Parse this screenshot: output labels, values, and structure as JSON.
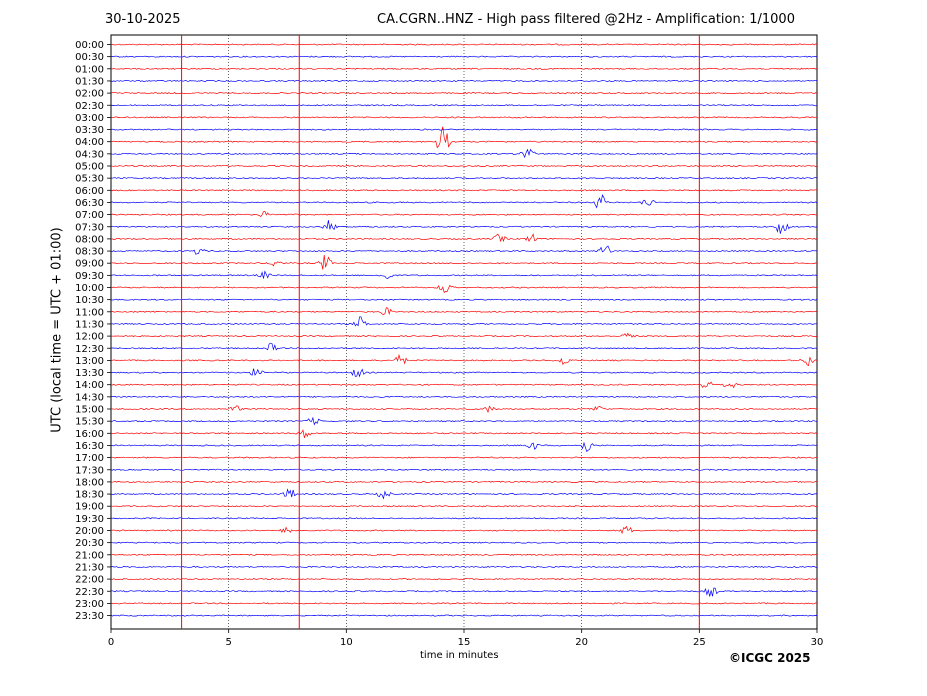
{
  "header": {
    "date": "30-10-2025",
    "title": "CA.CGRN..HNZ - High pass filtered @2Hz - Amplification: 1/1000"
  },
  "footer": {
    "credit": "©ICGC 2025"
  },
  "colors": {
    "trace_a": "#ff0000",
    "trace_b": "#0000ff",
    "axis": "#000000",
    "grid": "#000000"
  },
  "chart_data": {
    "type": "line",
    "title": "CA.CGRN..HNZ - High pass filtered @2Hz - Amplification: 1/1000",
    "xlabel": "time in minutes",
    "ylabel": "UTC (local time = UTC + 01:00)",
    "xlim": [
      0,
      30
    ],
    "x_ticks": [
      "0",
      "5",
      "10",
      "15",
      "20",
      "25",
      "30"
    ],
    "grid_x": "dotted vertical lines at 5, 10, 15, 20, 25",
    "y_order": "top to bottom, 00:00 first",
    "traces": [
      {
        "label": "00:00",
        "color": "red"
      },
      {
        "label": "00:30",
        "color": "blue"
      },
      {
        "label": "01:00",
        "color": "red"
      },
      {
        "label": "01:30",
        "color": "blue"
      },
      {
        "label": "02:00",
        "color": "red"
      },
      {
        "label": "02:30",
        "color": "blue"
      },
      {
        "label": "03:00",
        "color": "red"
      },
      {
        "label": "03:30",
        "color": "blue"
      },
      {
        "label": "04:00",
        "color": "red"
      },
      {
        "label": "04:30",
        "color": "blue"
      },
      {
        "label": "05:00",
        "color": "red"
      },
      {
        "label": "05:30",
        "color": "blue"
      },
      {
        "label": "06:00",
        "color": "red"
      },
      {
        "label": "06:30",
        "color": "blue"
      },
      {
        "label": "07:00",
        "color": "red"
      },
      {
        "label": "07:30",
        "color": "blue"
      },
      {
        "label": "08:00",
        "color": "red"
      },
      {
        "label": "08:30",
        "color": "blue"
      },
      {
        "label": "09:00",
        "color": "red"
      },
      {
        "label": "09:30",
        "color": "blue"
      },
      {
        "label": "10:00",
        "color": "red"
      },
      {
        "label": "10:30",
        "color": "blue"
      },
      {
        "label": "11:00",
        "color": "red"
      },
      {
        "label": "11:30",
        "color": "blue"
      },
      {
        "label": "12:00",
        "color": "red"
      },
      {
        "label": "12:30",
        "color": "blue"
      },
      {
        "label": "13:00",
        "color": "red"
      },
      {
        "label": "13:30",
        "color": "blue"
      },
      {
        "label": "14:00",
        "color": "red"
      },
      {
        "label": "14:30",
        "color": "blue"
      },
      {
        "label": "15:00",
        "color": "red"
      },
      {
        "label": "15:30",
        "color": "blue"
      },
      {
        "label": "16:00",
        "color": "red"
      },
      {
        "label": "16:30",
        "color": "blue"
      },
      {
        "label": "17:00",
        "color": "red"
      },
      {
        "label": "17:30",
        "color": "blue"
      },
      {
        "label": "18:00",
        "color": "red"
      },
      {
        "label": "18:30",
        "color": "blue"
      },
      {
        "label": "19:00",
        "color": "red"
      },
      {
        "label": "19:30",
        "color": "blue"
      },
      {
        "label": "20:00",
        "color": "red"
      },
      {
        "label": "20:30",
        "color": "blue"
      },
      {
        "label": "21:00",
        "color": "red"
      },
      {
        "label": "21:30",
        "color": "blue"
      },
      {
        "label": "22:00",
        "color": "red"
      },
      {
        "label": "22:30",
        "color": "blue"
      },
      {
        "label": "23:00",
        "color": "red"
      },
      {
        "label": "23:30",
        "color": "blue"
      }
    ],
    "vertical_events_minutes": [
      3,
      8,
      25
    ],
    "events": [
      {
        "trace": "04:00",
        "minute": 14.1,
        "amp": 3.5
      },
      {
        "trace": "04:30",
        "minute": 17.7,
        "amp": 2.0
      },
      {
        "trace": "06:30",
        "minute": 20.8,
        "amp": 1.8
      },
      {
        "trace": "06:30",
        "minute": 22.8,
        "amp": 1.0
      },
      {
        "trace": "07:00",
        "minute": 6.6,
        "amp": 1.0
      },
      {
        "trace": "07:30",
        "minute": 9.3,
        "amp": 1.5
      },
      {
        "trace": "07:30",
        "minute": 28.5,
        "amp": 2.0
      },
      {
        "trace": "08:00",
        "minute": 16.5,
        "amp": 1.0
      },
      {
        "trace": "08:00",
        "minute": 17.9,
        "amp": 1.0
      },
      {
        "trace": "08:30",
        "minute": 3.7,
        "amp": 0.8
      },
      {
        "trace": "08:30",
        "minute": 21.0,
        "amp": 1.5
      },
      {
        "trace": "09:00",
        "minute": 7.0,
        "amp": 0.8
      },
      {
        "trace": "09:00",
        "minute": 9.1,
        "amp": 1.8
      },
      {
        "trace": "09:30",
        "minute": 6.5,
        "amp": 0.8
      },
      {
        "trace": "09:30",
        "minute": 11.7,
        "amp": 1.0
      },
      {
        "trace": "10:00",
        "minute": 14.2,
        "amp": 1.5
      },
      {
        "trace": "11:00",
        "minute": 11.7,
        "amp": 0.8
      },
      {
        "trace": "11:30",
        "minute": 10.6,
        "amp": 1.5
      },
      {
        "trace": "12:00",
        "minute": 22.0,
        "amp": 0.9
      },
      {
        "trace": "12:30",
        "minute": 6.8,
        "amp": 1.0
      },
      {
        "trace": "13:00",
        "minute": 12.3,
        "amp": 1.2
      },
      {
        "trace": "13:00",
        "minute": 19.2,
        "amp": 1.0
      },
      {
        "trace": "13:00",
        "minute": 29.6,
        "amp": 1.3
      },
      {
        "trace": "13:30",
        "minute": 6.2,
        "amp": 1.2
      },
      {
        "trace": "13:30",
        "minute": 10.5,
        "amp": 1.2
      },
      {
        "trace": "14:00",
        "minute": 25.3,
        "amp": 1.0
      },
      {
        "trace": "14:00",
        "minute": 26.3,
        "amp": 1.0
      },
      {
        "trace": "15:00",
        "minute": 5.3,
        "amp": 0.7
      },
      {
        "trace": "15:00",
        "minute": 16.1,
        "amp": 0.7
      },
      {
        "trace": "15:00",
        "minute": 20.7,
        "amp": 0.7
      },
      {
        "trace": "15:30",
        "minute": 8.6,
        "amp": 0.8
      },
      {
        "trace": "16:00",
        "minute": 8.2,
        "amp": 1.2
      },
      {
        "trace": "16:30",
        "minute": 17.9,
        "amp": 1.0
      },
      {
        "trace": "16:30",
        "minute": 20.2,
        "amp": 1.5
      },
      {
        "trace": "18:30",
        "minute": 7.6,
        "amp": 1.2
      },
      {
        "trace": "18:30",
        "minute": 11.6,
        "amp": 1.0
      },
      {
        "trace": "20:00",
        "minute": 7.5,
        "amp": 0.8
      },
      {
        "trace": "20:00",
        "minute": 21.9,
        "amp": 1.0
      },
      {
        "trace": "22:30",
        "minute": 25.5,
        "amp": 1.2
      }
    ]
  }
}
